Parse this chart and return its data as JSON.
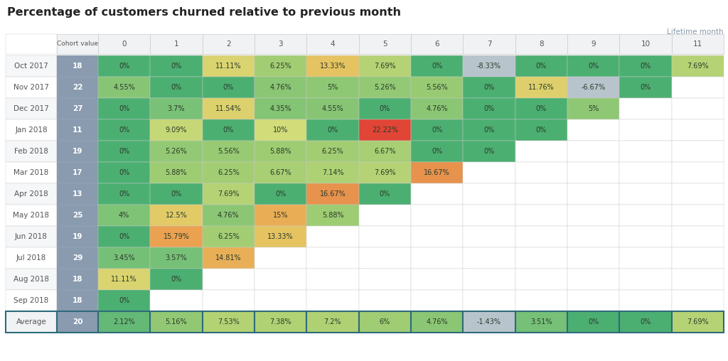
{
  "title": "Percentage of customers churned relative to previous month",
  "lifetime_label": "Lifetime month",
  "rows": [
    {
      "label": "Oct 2017",
      "cohort": 18,
      "values": [
        "0%",
        "0%",
        "11.11%",
        "6.25%",
        "13.33%",
        "7.69%",
        "0%",
        "-8.33%",
        "0%",
        "0%",
        "0%",
        "7.69%"
      ]
    },
    {
      "label": "Nov 2017",
      "cohort": 22,
      "values": [
        "4.55%",
        "0%",
        "0%",
        "4.76%",
        "5%",
        "5.26%",
        "5.56%",
        "0%",
        "11.76%",
        "-6.67%",
        "0%",
        null
      ]
    },
    {
      "label": "Dec 2017",
      "cohort": 27,
      "values": [
        "0%",
        "3.7%",
        "11.54%",
        "4.35%",
        "4.55%",
        "0%",
        "4.76%",
        "0%",
        "0%",
        "5%",
        null,
        null
      ]
    },
    {
      "label": "Jan 2018",
      "cohort": 11,
      "values": [
        "0%",
        "9.09%",
        "0%",
        "10%",
        "0%",
        "22.22%",
        "0%",
        "0%",
        "0%",
        null,
        null,
        null
      ]
    },
    {
      "label": "Feb 2018",
      "cohort": 19,
      "values": [
        "0%",
        "5.26%",
        "5.56%",
        "5.88%",
        "6.25%",
        "6.67%",
        "0%",
        "0%",
        null,
        null,
        null,
        null
      ]
    },
    {
      "label": "Mar 2018",
      "cohort": 17,
      "values": [
        "0%",
        "5.88%",
        "6.25%",
        "6.67%",
        "7.14%",
        "7.69%",
        "16.67%",
        null,
        null,
        null,
        null,
        null
      ]
    },
    {
      "label": "Apr 2018",
      "cohort": 13,
      "values": [
        "0%",
        "0%",
        "7.69%",
        "0%",
        "16.67%",
        "0%",
        null,
        null,
        null,
        null,
        null,
        null
      ]
    },
    {
      "label": "May 2018",
      "cohort": 25,
      "values": [
        "4%",
        "12.5%",
        "4.76%",
        "15%",
        "5.88%",
        null,
        null,
        null,
        null,
        null,
        null,
        null
      ]
    },
    {
      "label": "Jun 2018",
      "cohort": 19,
      "values": [
        "0%",
        "15.79%",
        "6.25%",
        "13.33%",
        null,
        null,
        null,
        null,
        null,
        null,
        null,
        null
      ]
    },
    {
      "label": "Jul 2018",
      "cohort": 29,
      "values": [
        "3.45%",
        "3.57%",
        "14.81%",
        null,
        null,
        null,
        null,
        null,
        null,
        null,
        null,
        null
      ]
    },
    {
      "label": "Aug 2018",
      "cohort": 18,
      "values": [
        "11.11%",
        "0%",
        null,
        null,
        null,
        null,
        null,
        null,
        null,
        null,
        null,
        null
      ]
    },
    {
      "label": "Sep 2018",
      "cohort": 18,
      "values": [
        "0%",
        null,
        null,
        null,
        null,
        null,
        null,
        null,
        null,
        null,
        null,
        null
      ]
    }
  ],
  "average": {
    "label": "Average",
    "cohort": 20,
    "values": [
      "2.12%",
      "5.16%",
      "7.53%",
      "7.38%",
      "7.2%",
      "6%",
      "4.76%",
      "-1.43%",
      "3.51%",
      "0%",
      "0%",
      "7.69%"
    ]
  },
  "bg_color": "#ffffff"
}
